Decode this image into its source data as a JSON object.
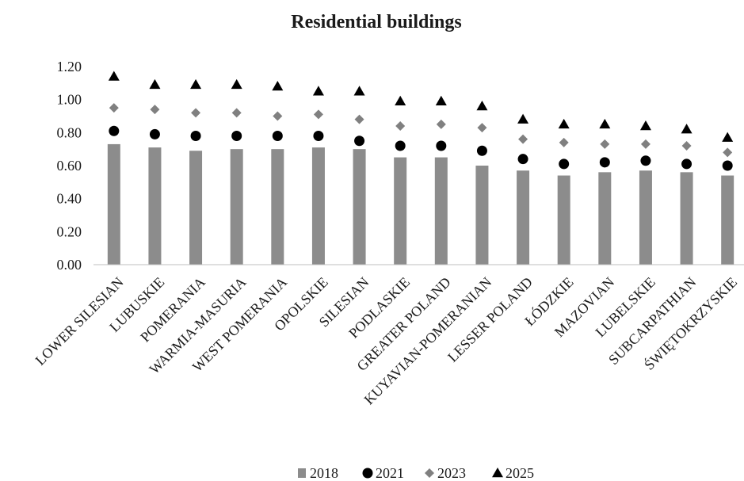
{
  "chart_data": {
    "type": "bar",
    "title": "Residential buildings",
    "xlabel": "",
    "ylabel": "",
    "ylim": [
      0,
      1.2
    ],
    "yticks": [
      "0.00",
      "0.20",
      "0.40",
      "0.60",
      "0.80",
      "1.00",
      "1.20"
    ],
    "grid": false,
    "legend_position": "bottom",
    "categories": [
      "LOWER SILESIAN",
      "LUBUSKIE",
      "POMERANIA",
      "WARMIA-MASURIA",
      "WEST POMERANIA",
      "OPOLSKIE",
      "SILESIAN",
      "PODLASKIE",
      "GREATER POLAND",
      "KUYAVIAN-POMERANIAN",
      "LESSER POLAND",
      "ŁÓDZKIE",
      "MAZOVIAN",
      "LUBELSKIE",
      "SUBCARPATHIAN",
      "ŚWIĘTOKRZYSKIE"
    ],
    "series": [
      {
        "name": "2018",
        "mark": "bar",
        "color": "#8c8c8c",
        "values": [
          0.73,
          0.71,
          0.69,
          0.7,
          0.7,
          0.71,
          0.7,
          0.65,
          0.65,
          0.6,
          0.57,
          0.54,
          0.56,
          0.57,
          0.56,
          0.54
        ]
      },
      {
        "name": "2021",
        "mark": "circle",
        "color": "#000000",
        "values": [
          0.81,
          0.79,
          0.78,
          0.78,
          0.78,
          0.78,
          0.75,
          0.72,
          0.72,
          0.69,
          0.64,
          0.61,
          0.62,
          0.63,
          0.61,
          0.6
        ]
      },
      {
        "name": "2023",
        "mark": "diamond",
        "color": "#808080",
        "values": [
          0.95,
          0.94,
          0.92,
          0.92,
          0.9,
          0.91,
          0.88,
          0.84,
          0.85,
          0.83,
          0.76,
          0.74,
          0.73,
          0.73,
          0.72,
          0.68
        ]
      },
      {
        "name": "2025",
        "mark": "triangle",
        "color": "#000000",
        "values": [
          1.14,
          1.09,
          1.09,
          1.09,
          1.08,
          1.05,
          1.05,
          0.99,
          0.99,
          0.96,
          0.88,
          0.85,
          0.85,
          0.84,
          0.82,
          0.77
        ]
      }
    ]
  }
}
